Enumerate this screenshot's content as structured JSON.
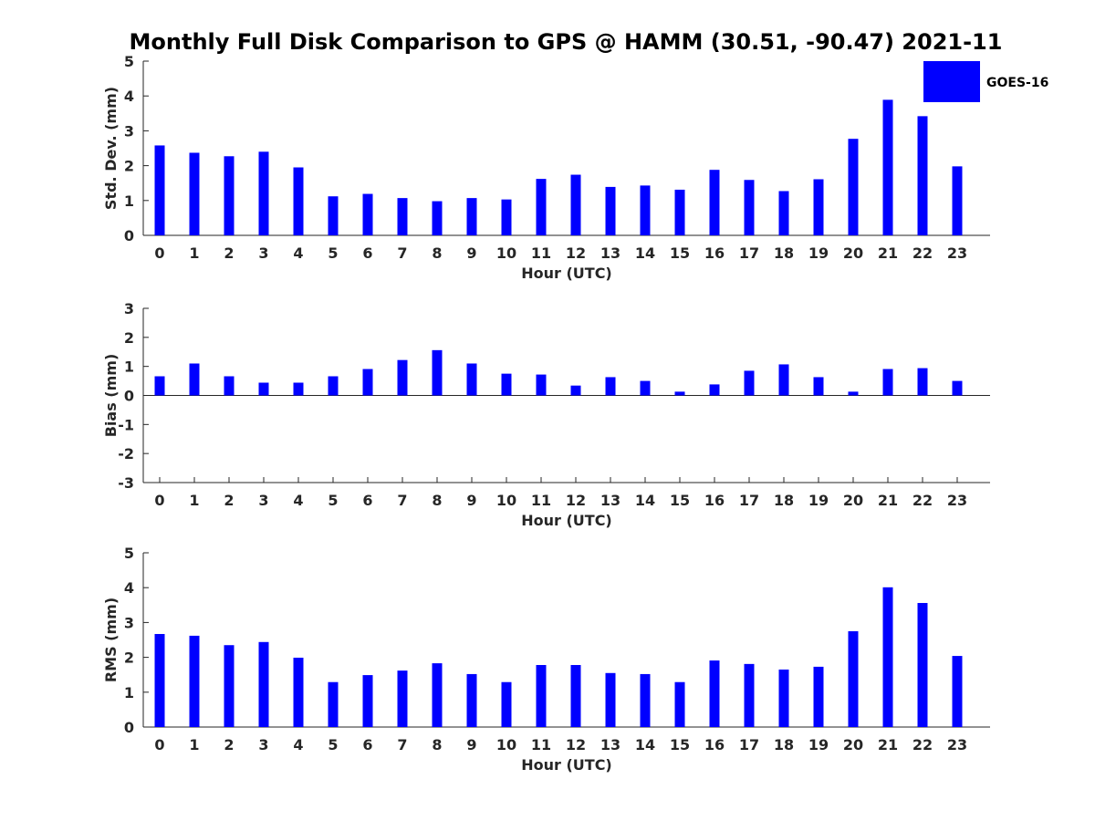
{
  "title": "Monthly Full Disk Comparison to GPS @ HAMM (30.51, -90.47) 2021-11",
  "legend": {
    "label": "GOES-16",
    "color": "#0000ff",
    "placement": "top-right"
  },
  "bar_color": "#0000ff",
  "chart_data": [
    {
      "type": "bar",
      "xlabel": "Hour (UTC)",
      "ylabel": "Std. Dev. (mm)",
      "categories": [
        "0",
        "1",
        "2",
        "3",
        "4",
        "5",
        "6",
        "7",
        "8",
        "9",
        "10",
        "11",
        "12",
        "13",
        "14",
        "15",
        "16",
        "17",
        "18",
        "19",
        "20",
        "21",
        "22",
        "23"
      ],
      "yticks": [
        "0",
        "1",
        "2",
        "3",
        "4",
        "5"
      ],
      "ylim": [
        0,
        5
      ],
      "grid": false,
      "series": [
        {
          "name": "GOES-16",
          "values": [
            2.58,
            2.37,
            2.27,
            2.4,
            1.95,
            1.12,
            1.19,
            1.07,
            0.98,
            1.07,
            1.03,
            1.62,
            1.74,
            1.39,
            1.43,
            1.31,
            1.88,
            1.59,
            1.27,
            1.61,
            2.77,
            3.89,
            3.42,
            1.98
          ]
        }
      ]
    },
    {
      "type": "bar",
      "xlabel": "Hour (UTC)",
      "ylabel": "Bias (mm)",
      "categories": [
        "0",
        "1",
        "2",
        "3",
        "4",
        "5",
        "6",
        "7",
        "8",
        "9",
        "10",
        "11",
        "12",
        "13",
        "14",
        "15",
        "16",
        "17",
        "18",
        "19",
        "20",
        "21",
        "22",
        "23"
      ],
      "yticks": [
        "-3",
        "-2",
        "-1",
        "0",
        "1",
        "2",
        "3"
      ],
      "ylim": [
        -3,
        3
      ],
      "grid": false,
      "series": [
        {
          "name": "GOES-16",
          "values": [
            0.66,
            1.1,
            0.66,
            0.44,
            0.44,
            0.66,
            0.91,
            1.22,
            1.56,
            1.1,
            0.75,
            0.72,
            0.34,
            0.63,
            0.5,
            0.13,
            0.38,
            0.85,
            1.07,
            0.63,
            0.13,
            0.91,
            0.94,
            0.5
          ]
        }
      ]
    },
    {
      "type": "bar",
      "xlabel": "Hour (UTC)",
      "ylabel": "RMS (mm)",
      "categories": [
        "0",
        "1",
        "2",
        "3",
        "4",
        "5",
        "6",
        "7",
        "8",
        "9",
        "10",
        "11",
        "12",
        "13",
        "14",
        "15",
        "16",
        "17",
        "18",
        "19",
        "20",
        "21",
        "22",
        "23"
      ],
      "yticks": [
        "0",
        "1",
        "2",
        "3",
        "4",
        "5"
      ],
      "ylim": [
        0,
        5
      ],
      "grid": false,
      "series": [
        {
          "name": "GOES-16",
          "values": [
            2.67,
            2.62,
            2.35,
            2.44,
            1.99,
            1.29,
            1.49,
            1.62,
            1.83,
            1.52,
            1.29,
            1.78,
            1.78,
            1.55,
            1.52,
            1.29,
            1.91,
            1.81,
            1.65,
            1.73,
            2.75,
            4.01,
            3.56,
            2.04
          ]
        }
      ]
    }
  ]
}
